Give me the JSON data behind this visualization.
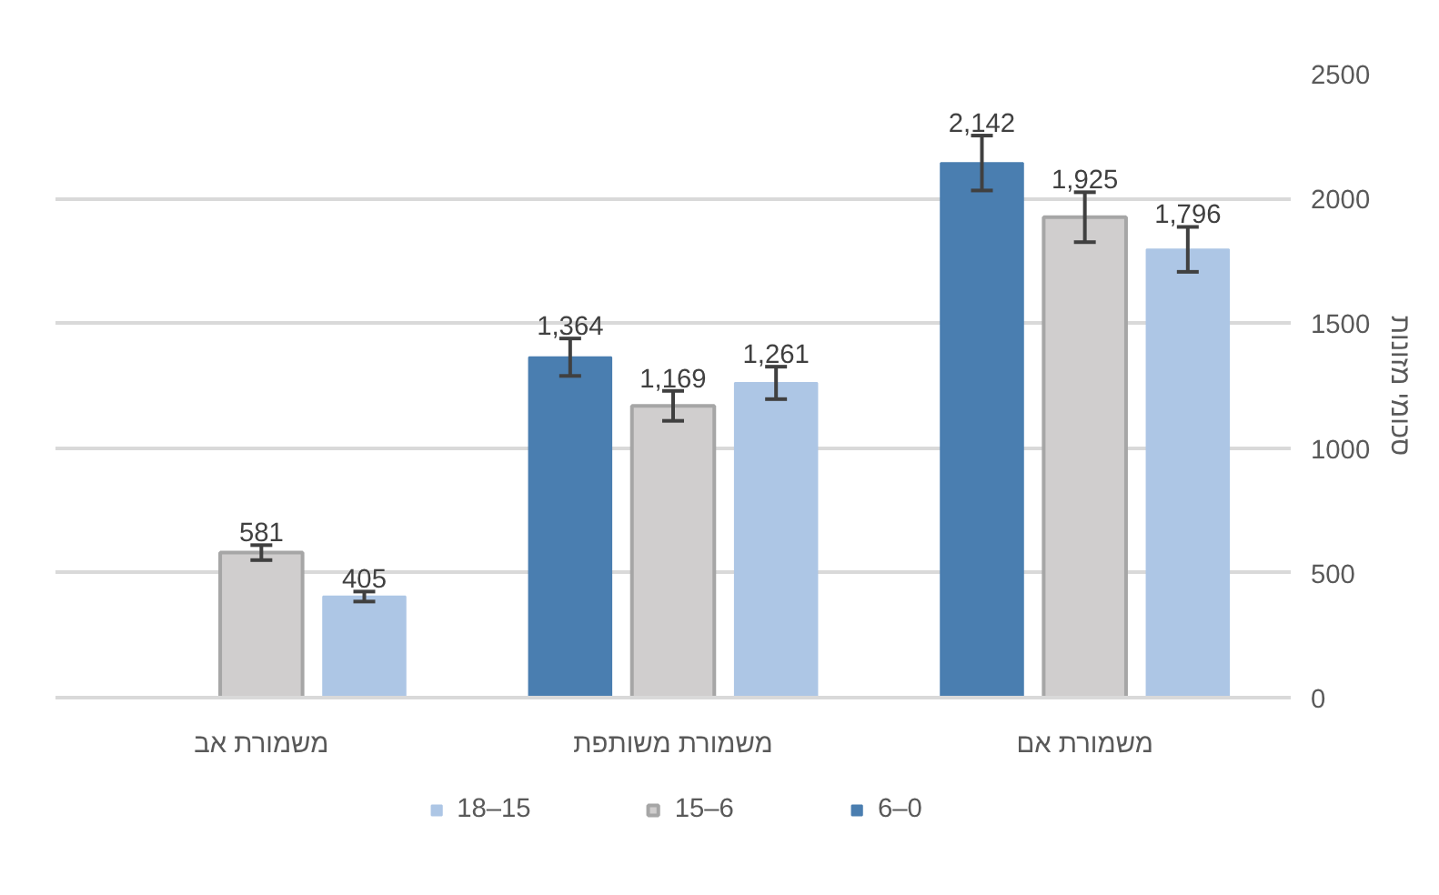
{
  "chart_data": {
    "type": "bar",
    "ylabel": "סכומי מזונות",
    "categories": [
      "משמורת אב",
      "משמורת משותפת",
      "משמורת אם"
    ],
    "series": [
      {
        "name": "6–0",
        "color": "#4a7eb0",
        "values": [
          null,
          1364,
          2142
        ],
        "errors": [
          null,
          75,
          110
        ],
        "value_labels": [
          null,
          "1,364",
          "2,142"
        ]
      },
      {
        "name": "15–6",
        "color": "#d0cece",
        "values": [
          581,
          1169,
          1925
        ],
        "errors": [
          30,
          60,
          100
        ],
        "value_labels": [
          "581",
          "1,169",
          "1,925"
        ]
      },
      {
        "name": "18–15",
        "color": "#adc6e5",
        "values": [
          405,
          1261,
          1796
        ],
        "errors": [
          20,
          65,
          90
        ],
        "value_labels": [
          "405",
          "1,261",
          "1,796"
        ]
      }
    ],
    "ylim": [
      0,
      2500
    ],
    "yticks": [
      0,
      500,
      1000,
      1500,
      2000,
      2500
    ],
    "grid": "y",
    "legend": "bottom"
  }
}
